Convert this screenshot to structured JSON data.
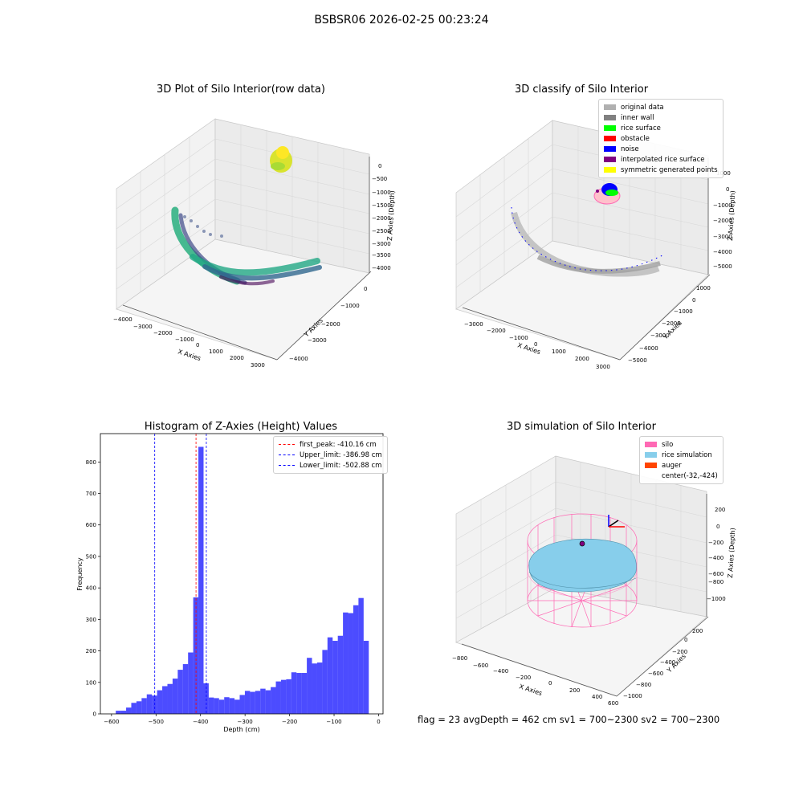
{
  "figure": {
    "suptitle": "BSBSR06 2026-02-25 00:23:24"
  },
  "panel_raw": {
    "title": "3D Plot of Silo Interior(row data)",
    "xlabel": "X Axies",
    "ylabel": "Y Axies",
    "zlabel": "Z Axies (Depth)",
    "xticks": [
      "−4000",
      "−3000",
      "−2000",
      "−1000",
      "0",
      "1000",
      "2000",
      "3000"
    ],
    "yticks": [
      "0",
      "−1000",
      "−2000",
      "−3000",
      "−4000"
    ],
    "zticks": [
      "0",
      "−500",
      "−1000",
      "−1500",
      "−2000",
      "−2500",
      "−3000",
      "−3500",
      "−4000"
    ]
  },
  "panel_classify": {
    "title": "3D classify of Silo Interior",
    "xlabel": "X Axies",
    "ylabel": "Y Axies",
    "zlabel": "Z Axies (Depth)",
    "xticks": [
      "−3000",
      "−2000",
      "−1000",
      "0",
      "1000",
      "2000",
      "3000"
    ],
    "yticks": [
      "1000",
      "0",
      "−1000",
      "−2000",
      "−3000",
      "−4000",
      "−5000"
    ],
    "zticks": [
      "1000",
      "0",
      "−1000",
      "−2000",
      "−3000",
      "−4000",
      "−5000"
    ],
    "legend": [
      {
        "label": "original data",
        "color": "#b0b0b0"
      },
      {
        "label": "inner wall",
        "color": "#808080"
      },
      {
        "label": "rice surface",
        "color": "#00ff00"
      },
      {
        "label": "obstacle",
        "color": "#ff0000"
      },
      {
        "label": "noise",
        "color": "#0000ff"
      },
      {
        "label": "interpolated rice surface",
        "color": "#800080"
      },
      {
        "label": "symmetric generated points",
        "color": "#ffff00"
      }
    ]
  },
  "panel_sim": {
    "title": "3D simulation of Silo Interior",
    "xlabel": "X Axies",
    "ylabel": "Y Axies",
    "zlabel": "Z Axies (Depth)",
    "xticks": [
      "−800",
      "−600",
      "−400",
      "−200",
      "0",
      "200",
      "400",
      "600"
    ],
    "yticks": [
      "200",
      "0",
      "−200",
      "−400",
      "−600",
      "−800",
      "−1000"
    ],
    "zticks": [
      "200",
      "0",
      "−200",
      "−400",
      "−600",
      "−800",
      "−1000"
    ],
    "legend": [
      {
        "label": "silo",
        "color": "#ff69b4"
      },
      {
        "label": "rice simulation",
        "color": "#87ceeb"
      },
      {
        "label": "auger",
        "color": "#ff4500"
      },
      {
        "label": "center(-32,-424)",
        "color": "none"
      }
    ]
  },
  "chart_data": {
    "type": "bar",
    "title": "Histogram of Z-Axies (Height) Values",
    "xlabel": "Depth (cm)",
    "ylabel": "Frequency",
    "xlim": [
      -625,
      10
    ],
    "ylim": [
      0,
      890
    ],
    "xticks": [
      -600,
      -500,
      -400,
      -300,
      -200,
      -100,
      0
    ],
    "yticks": [
      0,
      100,
      200,
      300,
      400,
      500,
      600,
      700,
      800
    ],
    "bar_color": "#0000ff",
    "bin_width": 11.6,
    "bin_starts": [
      -590.4,
      -578.8,
      -567.2,
      -555.6,
      -544.0,
      -532.4,
      -520.8,
      -509.2,
      -497.6,
      -486.0,
      -474.4,
      -462.8,
      -451.2,
      -439.6,
      -428.0,
      -416.4,
      -404.8,
      -393.2,
      -381.6,
      -370.0,
      -358.4,
      -346.8,
      -335.2,
      -323.6,
      -312.0,
      -300.4,
      -288.8,
      -277.2,
      -265.6,
      -254.0,
      -242.4,
      -230.8,
      -219.2,
      -207.6,
      -196.0,
      -184.4,
      -172.8,
      -161.2,
      -149.6,
      -138.0,
      -126.4,
      -114.8,
      -103.2,
      -91.6,
      -80.0,
      -68.4,
      -56.8,
      -45.2,
      -33.6,
      -22.0
    ],
    "values": [
      10,
      10,
      20,
      35,
      40,
      50,
      62,
      58,
      75,
      88,
      95,
      112,
      140,
      158,
      195,
      370,
      848,
      97,
      52,
      50,
      45,
      53,
      50,
      45,
      60,
      73,
      70,
      73,
      80,
      75,
      85,
      103,
      108,
      110,
      132,
      130,
      130,
      178,
      160,
      163,
      203,
      243,
      232,
      248,
      322,
      320,
      345,
      368,
      232,
      0
    ],
    "reference_lines": [
      {
        "label": "first_peak: -410.16 cm",
        "x": -410.16,
        "color": "#ff0000"
      },
      {
        "label": "Upper_limit: -386.98 cm",
        "x": -386.98,
        "color": "#0000ff"
      },
      {
        "label": "Lower_limit: -502.88 cm",
        "x": -502.88,
        "color": "#0000ff"
      }
    ]
  },
  "footer": {
    "status": "flag = 23   avgDepth = 462 cm   sv1 = 700~2300   sv2 = 700~2300"
  }
}
